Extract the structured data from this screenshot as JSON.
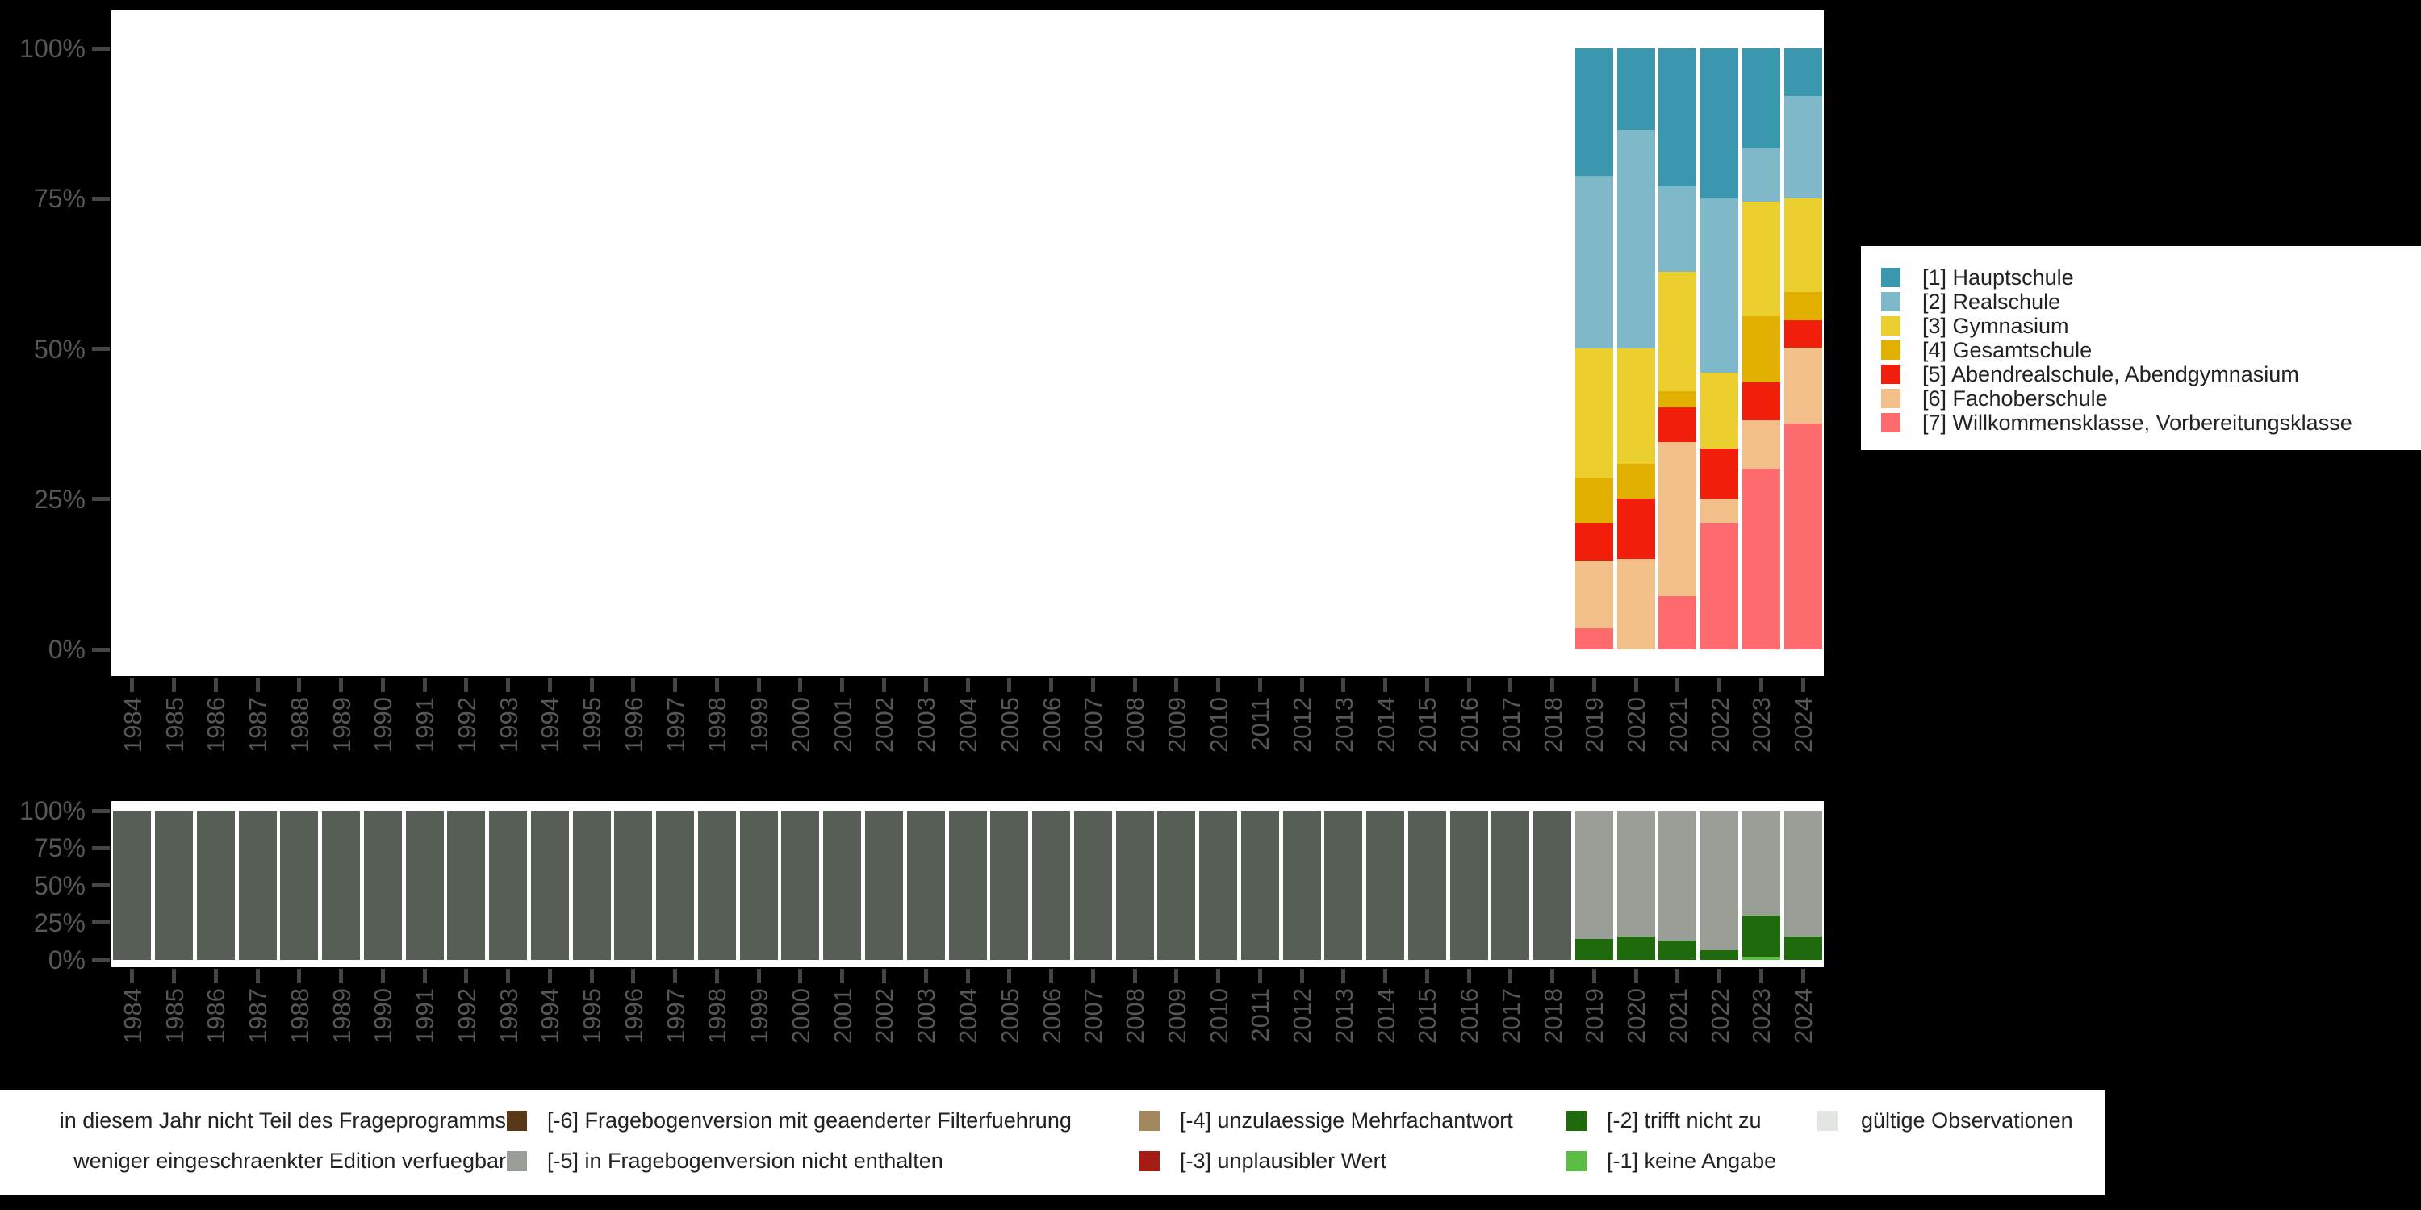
{
  "figure": {
    "background": "#000000",
    "panel_background": "#FFFFFF",
    "axis_tick_color": "#454545",
    "axis_label_color": "#575757"
  },
  "top_legend": {
    "items": [
      {
        "label": "[1] Hauptschule",
        "color": "#3B97AD"
      },
      {
        "label": "[2] Realschule",
        "color": "#7FB8C9"
      },
      {
        "label": "[3] Gymnasium",
        "color": "#EACF2F"
      },
      {
        "label": "[4] Gesamtschule",
        "color": "#E0AF00"
      },
      {
        "label": "[5] Abendrealschule, Abendgymnasium",
        "color": "#F01E0B"
      },
      {
        "label": "[6] Fachoberschule",
        "color": "#F1BF87"
      },
      {
        "label": "[7] Willkommensklasse, Vorbereitungsklasse",
        "color": "#FD6B6E"
      }
    ]
  },
  "bottom_legend": {
    "columns": [
      {
        "rows": [
          {
            "label": "in diesem Jahr nicht Teil des Frageprogramms",
            "color": null
          },
          {
            "label": "weniger eingeschraenkter Edition verfuegbar",
            "color": null
          }
        ]
      },
      {
        "rows": [
          {
            "label": "[-6] Fragebogenversion mit geaenderter Filterfuehrung",
            "color": "#59381A"
          },
          {
            "label": "[-5] in Fragebogenversion nicht enthalten",
            "color": "#999F97"
          }
        ]
      },
      {
        "rows": [
          {
            "label": "[-4] unzulaessige Mehrfachantwort",
            "color": "#A3875D"
          },
          {
            "label": "[-3] unplausibler Wert",
            "color": "#A51D12"
          }
        ]
      },
      {
        "rows": [
          {
            "label": "[-2] trifft nicht zu",
            "color": "#206A0E"
          },
          {
            "label": "[-1] keine Angabe",
            "color": "#5BBE42"
          }
        ]
      },
      {
        "rows": [
          {
            "label": "gültige Observationen",
            "color": "#E2E6E0"
          }
        ]
      }
    ]
  },
  "chart_data": [
    {
      "type": "bar",
      "stacked": true,
      "name": "school-type-shares-by-year",
      "categories": [
        "1984",
        "1985",
        "1986",
        "1987",
        "1988",
        "1989",
        "1990",
        "1991",
        "1992",
        "1993",
        "1994",
        "1995",
        "1996",
        "1997",
        "1998",
        "1999",
        "2000",
        "2001",
        "2002",
        "2003",
        "2004",
        "2005",
        "2006",
        "2007",
        "2008",
        "2009",
        "2010",
        "2011",
        "2012",
        "2013",
        "2014",
        "2015",
        "2016",
        "2017",
        "2018",
        "2019",
        "2020",
        "2021",
        "2022",
        "2023",
        "2024"
      ],
      "y_ticks": [
        "100%",
        "75%",
        "50%",
        "25%",
        "0%"
      ],
      "ylim": [
        0,
        100
      ],
      "grid": false,
      "legend_position": "right",
      "series": [
        {
          "name": "[1] Hauptschule",
          "color": "#3B97AD",
          "data": {
            "2019": 21.2,
            "2020": 13.5,
            "2021": 22.9,
            "2022": 25.0,
            "2023": 16.6,
            "2024": 7.9
          }
        },
        {
          "name": "[2] Realschule",
          "color": "#7FB8C9",
          "data": {
            "2019": 28.7,
            "2020": 36.4,
            "2021": 14.3,
            "2022": 29.0,
            "2023": 8.9,
            "2024": 17.1
          }
        },
        {
          "name": "[3] Gymnasium",
          "color": "#EACF2F",
          "data": {
            "2019": 21.5,
            "2020": 19.2,
            "2021": 19.9,
            "2022": 12.6,
            "2023": 19.1,
            "2024": 15.6
          }
        },
        {
          "name": "[4] Gesamtschule",
          "color": "#E0AF00",
          "data": {
            "2019": 7.5,
            "2020": 5.8,
            "2021": 2.7,
            "2022": 0,
            "2023": 11.0,
            "2024": 4.7
          }
        },
        {
          "name": "[5] Abendrealschule, Abendgymnasium",
          "color": "#F01E0B",
          "data": {
            "2019": 6.4,
            "2020": 10.1,
            "2021": 5.7,
            "2022": 8.3,
            "2023": 6.3,
            "2024": 4.5
          }
        },
        {
          "name": "[6] Fachoberschule",
          "color": "#F1BF87",
          "data": {
            "2019": 11.2,
            "2020": 15.0,
            "2021": 25.6,
            "2022": 4.0,
            "2023": 8.0,
            "2024": 12.6
          }
        },
        {
          "name": "[7] Willkommensklasse, Vorbereitungsklasse",
          "color": "#FD6B6E",
          "data": {
            "2019": 3.5,
            "2020": 0,
            "2021": 8.9,
            "2022": 21.1,
            "2023": 30.1,
            "2024": 37.6
          }
        }
      ]
    },
    {
      "type": "bar",
      "stacked": true,
      "name": "missing-codes-by-year",
      "categories": [
        "1984",
        "1985",
        "1986",
        "1987",
        "1988",
        "1989",
        "1990",
        "1991",
        "1992",
        "1993",
        "1994",
        "1995",
        "1996",
        "1997",
        "1998",
        "1999",
        "2000",
        "2001",
        "2002",
        "2003",
        "2004",
        "2005",
        "2006",
        "2007",
        "2008",
        "2009",
        "2010",
        "2011",
        "2012",
        "2013",
        "2014",
        "2015",
        "2016",
        "2017",
        "2018",
        "2019",
        "2020",
        "2021",
        "2022",
        "2023",
        "2024"
      ],
      "y_ticks": [
        "100%",
        "75%",
        "50%",
        "25%",
        "0%"
      ],
      "ylim": [
        0,
        100
      ],
      "grid": false,
      "legend_position": "bottom",
      "series": [
        {
          "name": "in diesem Jahr nicht Teil des Frageprogramms",
          "color": "#575E55",
          "data": {
            "1984": 100,
            "1985": 100,
            "1986": 100,
            "1987": 100,
            "1988": 100,
            "1989": 100,
            "1990": 100,
            "1991": 100,
            "1992": 100,
            "1993": 100,
            "1994": 100,
            "1995": 100,
            "1996": 100,
            "1997": 100,
            "1998": 100,
            "1999": 100,
            "2000": 100,
            "2001": 100,
            "2002": 100,
            "2003": 100,
            "2004": 100,
            "2005": 100,
            "2006": 100,
            "2007": 100,
            "2008": 100,
            "2009": 100,
            "2010": 100,
            "2011": 100,
            "2012": 100,
            "2013": 100,
            "2014": 100,
            "2015": 100,
            "2016": 100,
            "2017": 100,
            "2018": 100
          }
        },
        {
          "name": "[-5] in Fragebogenversion nicht enthalten",
          "color": "#999F97",
          "data": {
            "2019": 86,
            "2020": 84.3,
            "2021": 87,
            "2022": 93.5,
            "2023": 70.1,
            "2024": 84.3
          }
        },
        {
          "name": "[-2] trifft nicht zu",
          "color": "#206A0E",
          "data": {
            "2019": 14,
            "2020": 15.7,
            "2021": 13,
            "2022": 6.5,
            "2023": 28,
            "2024": 15.7
          }
        },
        {
          "name": "[-1] keine Angabe",
          "color": "#5BBE42",
          "data": {
            "2023": 1.9
          }
        }
      ]
    }
  ]
}
